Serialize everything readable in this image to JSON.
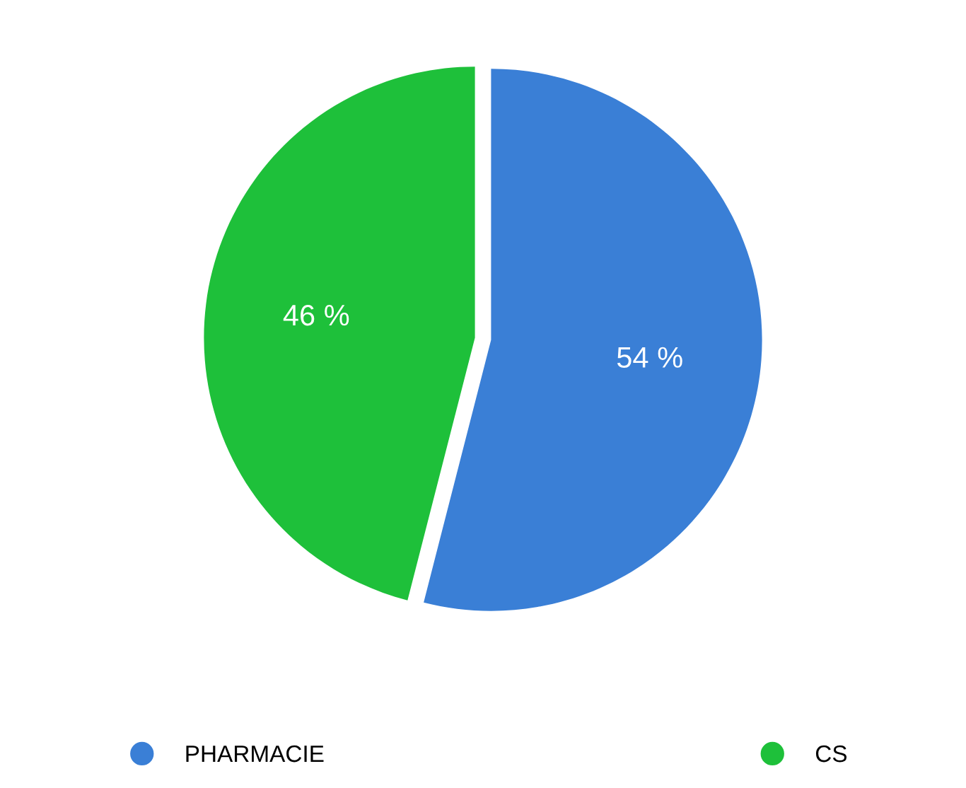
{
  "chart_data": {
    "type": "pie",
    "categories": [
      "PHARMACIE",
      "CS"
    ],
    "values": [
      54,
      46
    ],
    "colors": [
      "#3a7fd6",
      "#1ec03a"
    ],
    "value_labels": [
      "54 %",
      "46 %"
    ],
    "legend": "bottom"
  }
}
